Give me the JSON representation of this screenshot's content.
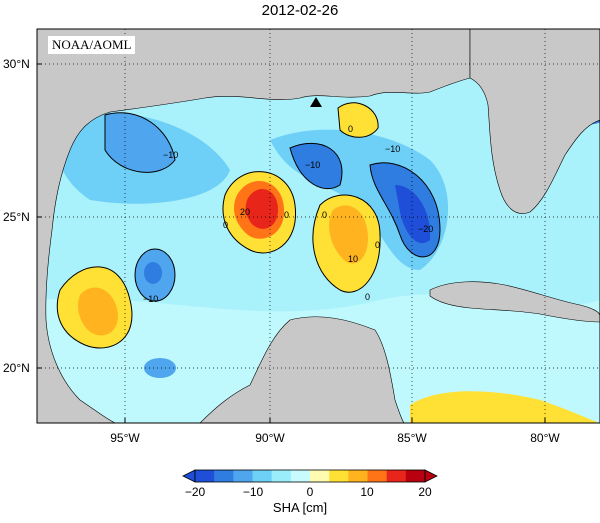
{
  "title": "2012-02-26",
  "attribution": "NOAA/AOML",
  "lat_labels": [
    "30°N",
    "25°N",
    "20°N"
  ],
  "lon_labels": [
    "95°W",
    "90°W",
    "85°W",
    "80°W"
  ],
  "colorbar": {
    "label": "SHA [cm]",
    "ticks": [
      "−20",
      "−10",
      "0",
      "10",
      "20"
    ],
    "colors": [
      "#1f4fd8",
      "#2f7de0",
      "#4fa6ee",
      "#6fd0f7",
      "#9aeefb",
      "#c8fbfd",
      "#fffbb0",
      "#ffe135",
      "#ffb41f",
      "#ff7417",
      "#e8251a",
      "#b80010"
    ]
  },
  "contour_labels": [
    "−10",
    "−10",
    "0",
    "−10",
    "−20",
    "0",
    "20",
    "0",
    "10",
    "0",
    "−10",
    "0",
    "0"
  ],
  "colors": {
    "land": "#c8c8c8",
    "background_ocean": "#aaf2fb"
  }
}
